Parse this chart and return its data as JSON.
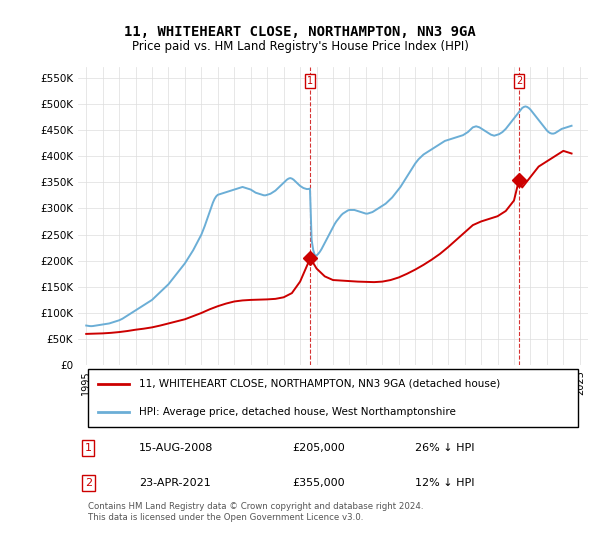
{
  "title": "11, WHITEHEART CLOSE, NORTHAMPTON, NN3 9GA",
  "subtitle": "Price paid vs. HM Land Registry's House Price Index (HPI)",
  "footnote": "Contains HM Land Registry data © Crown copyright and database right 2024.\nThis data is licensed under the Open Government Licence v3.0.",
  "legend_line1": "11, WHITEHEART CLOSE, NORTHAMPTON, NN3 9GA (detached house)",
  "legend_line2": "HPI: Average price, detached house, West Northamptonshire",
  "transaction1_label": "1",
  "transaction1_date": "15-AUG-2008",
  "transaction1_price": "£205,000",
  "transaction1_hpi": "26% ↓ HPI",
  "transaction2_label": "2",
  "transaction2_date": "23-APR-2021",
  "transaction2_price": "£355,000",
  "transaction2_hpi": "12% ↓ HPI",
  "price_color": "#cc0000",
  "hpi_color": "#6baed6",
  "marker1_x": 2008.62,
  "marker1_y": 205000,
  "marker2_x": 2021.31,
  "marker2_y": 355000,
  "vline1_x": 2008.62,
  "vline2_x": 2021.31,
  "ylim": [
    0,
    570000
  ],
  "xlim_start": 1994.5,
  "xlim_end": 2025.5,
  "yticks": [
    0,
    50000,
    100000,
    150000,
    200000,
    250000,
    300000,
    350000,
    400000,
    450000,
    500000,
    550000
  ],
  "ytick_labels": [
    "£0",
    "£50K",
    "£100K",
    "£150K",
    "£200K",
    "£250K",
    "£300K",
    "£350K",
    "£400K",
    "£450K",
    "£500K",
    "£550K"
  ],
  "xticks": [
    1995,
    1996,
    1997,
    1998,
    1999,
    2000,
    2001,
    2002,
    2003,
    2004,
    2005,
    2006,
    2007,
    2008,
    2009,
    2010,
    2011,
    2012,
    2013,
    2014,
    2015,
    2016,
    2017,
    2018,
    2019,
    2020,
    2021,
    2022,
    2023,
    2024,
    2025
  ],
  "hpi_years": [
    1995.0,
    1995.1,
    1995.2,
    1995.3,
    1995.4,
    1995.5,
    1995.6,
    1995.7,
    1995.8,
    1995.9,
    1996.0,
    1996.1,
    1996.2,
    1996.3,
    1996.4,
    1996.5,
    1996.6,
    1996.7,
    1996.8,
    1996.9,
    1997.0,
    1997.1,
    1997.2,
    1997.3,
    1997.4,
    1997.5,
    1997.6,
    1997.7,
    1997.8,
    1997.9,
    1998.0,
    1998.1,
    1998.2,
    1998.3,
    1998.4,
    1998.5,
    1998.6,
    1998.7,
    1998.8,
    1998.9,
    1999.0,
    1999.1,
    1999.2,
    1999.3,
    1999.4,
    1999.5,
    1999.6,
    1999.7,
    1999.8,
    1999.9,
    2000.0,
    2000.1,
    2000.2,
    2000.3,
    2000.4,
    2000.5,
    2000.6,
    2000.7,
    2000.8,
    2000.9,
    2001.0,
    2001.1,
    2001.2,
    2001.3,
    2001.4,
    2001.5,
    2001.6,
    2001.7,
    2001.8,
    2001.9,
    2002.0,
    2002.1,
    2002.2,
    2002.3,
    2002.4,
    2002.5,
    2002.6,
    2002.7,
    2002.8,
    2002.9,
    2003.0,
    2003.1,
    2003.2,
    2003.3,
    2003.4,
    2003.5,
    2003.6,
    2003.7,
    2003.8,
    2003.9,
    2004.0,
    2004.1,
    2004.2,
    2004.3,
    2004.4,
    2004.5,
    2004.6,
    2004.7,
    2004.8,
    2004.9,
    2005.0,
    2005.1,
    2005.2,
    2005.3,
    2005.4,
    2005.5,
    2005.6,
    2005.7,
    2005.8,
    2005.9,
    2006.0,
    2006.1,
    2006.2,
    2006.3,
    2006.4,
    2006.5,
    2006.6,
    2006.7,
    2006.8,
    2006.9,
    2007.0,
    2007.1,
    2007.2,
    2007.3,
    2007.4,
    2007.5,
    2007.6,
    2007.7,
    2007.8,
    2007.9,
    2008.0,
    2008.1,
    2008.2,
    2008.3,
    2008.4,
    2008.5,
    2008.6,
    2008.7,
    2008.8,
    2008.9,
    2009.0,
    2009.1,
    2009.2,
    2009.3,
    2009.4,
    2009.5,
    2009.6,
    2009.7,
    2009.8,
    2009.9,
    2010.0,
    2010.1,
    2010.2,
    2010.3,
    2010.4,
    2010.5,
    2010.6,
    2010.7,
    2010.8,
    2010.9,
    2011.0,
    2011.1,
    2011.2,
    2011.3,
    2011.4,
    2011.5,
    2011.6,
    2011.7,
    2011.8,
    2011.9,
    2012.0,
    2012.1,
    2012.2,
    2012.3,
    2012.4,
    2012.5,
    2012.6,
    2012.7,
    2012.8,
    2012.9,
    2013.0,
    2013.1,
    2013.2,
    2013.3,
    2013.4,
    2013.5,
    2013.6,
    2013.7,
    2013.8,
    2013.9,
    2014.0,
    2014.1,
    2014.2,
    2014.3,
    2014.4,
    2014.5,
    2014.6,
    2014.7,
    2014.8,
    2014.9,
    2015.0,
    2015.1,
    2015.2,
    2015.3,
    2015.4,
    2015.5,
    2015.6,
    2015.7,
    2015.8,
    2015.9,
    2016.0,
    2016.1,
    2016.2,
    2016.3,
    2016.4,
    2016.5,
    2016.6,
    2016.7,
    2016.8,
    2016.9,
    2017.0,
    2017.1,
    2017.2,
    2017.3,
    2017.4,
    2017.5,
    2017.6,
    2017.7,
    2017.8,
    2017.9,
    2018.0,
    2018.1,
    2018.2,
    2018.3,
    2018.4,
    2018.5,
    2018.6,
    2018.7,
    2018.8,
    2018.9,
    2019.0,
    2019.1,
    2019.2,
    2019.3,
    2019.4,
    2019.5,
    2019.6,
    2019.7,
    2019.8,
    2019.9,
    2020.0,
    2020.1,
    2020.2,
    2020.3,
    2020.4,
    2020.5,
    2020.6,
    2020.7,
    2020.8,
    2020.9,
    2021.0,
    2021.1,
    2021.2,
    2021.3,
    2021.4,
    2021.5,
    2021.6,
    2021.7,
    2021.8,
    2021.9,
    2022.0,
    2022.1,
    2022.2,
    2022.3,
    2022.4,
    2022.5,
    2022.6,
    2022.7,
    2022.8,
    2022.9,
    2023.0,
    2023.1,
    2023.2,
    2023.3,
    2023.4,
    2023.5,
    2023.6,
    2023.7,
    2023.8,
    2023.9,
    2024.0,
    2024.1,
    2024.2,
    2024.3,
    2024.4,
    2024.5
  ],
  "hpi_values": [
    76000,
    75500,
    75000,
    74800,
    75000,
    75500,
    76000,
    76500,
    77000,
    77500,
    78000,
    78500,
    79000,
    79500,
    80000,
    81000,
    82000,
    83000,
    84000,
    85000,
    86000,
    87500,
    89000,
    91000,
    93000,
    95000,
    97000,
    99000,
    101000,
    103000,
    105000,
    107000,
    109000,
    111000,
    113000,
    115000,
    117000,
    119000,
    121000,
    123000,
    125000,
    128000,
    131000,
    134000,
    137000,
    140000,
    143000,
    146000,
    149000,
    152000,
    155000,
    159000,
    163000,
    167000,
    171000,
    175000,
    179000,
    183000,
    187000,
    191000,
    195000,
    200000,
    205000,
    210000,
    215000,
    220000,
    226000,
    232000,
    238000,
    244000,
    250000,
    258000,
    266000,
    275000,
    284000,
    293000,
    302000,
    311000,
    318000,
    323000,
    326000,
    327000,
    328000,
    329000,
    330000,
    331000,
    332000,
    333000,
    334000,
    335000,
    336000,
    337000,
    338000,
    339000,
    340000,
    341000,
    340000,
    339000,
    338000,
    337000,
    336000,
    334000,
    332000,
    330000,
    329000,
    328000,
    327000,
    326000,
    325000,
    325000,
    326000,
    327000,
    328000,
    330000,
    332000,
    334000,
    337000,
    340000,
    343000,
    346000,
    349000,
    352000,
    355000,
    357000,
    358000,
    357000,
    355000,
    352000,
    349000,
    346000,
    343000,
    341000,
    339000,
    338000,
    337000,
    337000,
    338000,
    240000,
    220000,
    210000,
    210000,
    213000,
    217000,
    222000,
    228000,
    234000,
    240000,
    246000,
    252000,
    258000,
    264000,
    270000,
    275000,
    279000,
    283000,
    287000,
    290000,
    292000,
    294000,
    296000,
    297000,
    297000,
    297000,
    297000,
    296000,
    295000,
    294000,
    293000,
    292000,
    291000,
    290000,
    290000,
    291000,
    292000,
    293000,
    295000,
    297000,
    299000,
    301000,
    303000,
    305000,
    307000,
    309000,
    312000,
    315000,
    318000,
    321000,
    325000,
    329000,
    333000,
    337000,
    341000,
    346000,
    351000,
    356000,
    361000,
    366000,
    371000,
    376000,
    381000,
    386000,
    390000,
    394000,
    397000,
    400000,
    403000,
    405000,
    407000,
    409000,
    411000,
    413000,
    415000,
    417000,
    419000,
    421000,
    423000,
    425000,
    427000,
    429000,
    430000,
    431000,
    432000,
    433000,
    434000,
    435000,
    436000,
    437000,
    438000,
    439000,
    440000,
    442000,
    444000,
    446000,
    449000,
    452000,
    455000,
    456000,
    457000,
    456000,
    455000,
    453000,
    451000,
    449000,
    447000,
    445000,
    443000,
    441000,
    440000,
    439000,
    440000,
    441000,
    442000,
    444000,
    446000,
    449000,
    452000,
    456000,
    460000,
    464000,
    468000,
    472000,
    476000,
    480000,
    484000,
    488000,
    492000,
    494000,
    495000,
    494000,
    492000,
    489000,
    485000,
    481000,
    477000,
    473000,
    469000,
    465000,
    461000,
    457000,
    453000,
    449000,
    446000,
    444000,
    443000,
    443000,
    444000,
    446000,
    448000,
    450000,
    452000,
    453000,
    454000,
    455000,
    456000,
    457000,
    458000
  ],
  "price_years": [
    1995.0,
    1995.5,
    1996.0,
    1996.5,
    1997.0,
    1997.5,
    1998.0,
    1998.5,
    1999.0,
    1999.5,
    2000.0,
    2000.5,
    2001.0,
    2001.5,
    2002.0,
    2002.5,
    2003.0,
    2003.5,
    2004.0,
    2004.5,
    2005.0,
    2005.5,
    2006.0,
    2006.5,
    2007.0,
    2007.5,
    2008.0,
    2008.62,
    2009.0,
    2009.5,
    2010.0,
    2010.5,
    2011.0,
    2011.5,
    2012.0,
    2012.5,
    2013.0,
    2013.5,
    2014.0,
    2014.5,
    2015.0,
    2015.5,
    2016.0,
    2016.5,
    2017.0,
    2017.5,
    2018.0,
    2018.5,
    2019.0,
    2019.5,
    2020.0,
    2020.5,
    2021.0,
    2021.31,
    2021.5,
    2022.0,
    2022.5,
    2023.0,
    2023.5,
    2024.0,
    2024.5
  ],
  "price_values": [
    60000,
    60500,
    61000,
    62000,
    63500,
    65500,
    68000,
    70000,
    72500,
    76000,
    80000,
    84000,
    88000,
    94000,
    100000,
    107000,
    113000,
    118000,
    122000,
    124000,
    125000,
    125500,
    126000,
    127000,
    130000,
    138000,
    160000,
    205000,
    185000,
    170000,
    163000,
    162000,
    161000,
    160000,
    159500,
    159000,
    160000,
    163000,
    168000,
    175000,
    183000,
    192000,
    202000,
    213000,
    226000,
    240000,
    254000,
    268000,
    275000,
    280000,
    285000,
    295000,
    315000,
    355000,
    340000,
    360000,
    380000,
    390000,
    400000,
    410000,
    405000
  ]
}
